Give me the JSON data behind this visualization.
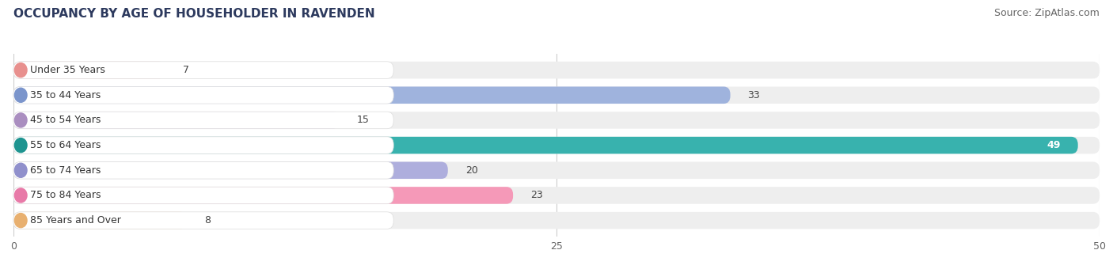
{
  "title": "OCCUPANCY BY AGE OF HOUSEHOLDER IN RAVENDEN",
  "source": "Source: ZipAtlas.com",
  "categories": [
    "Under 35 Years",
    "35 to 44 Years",
    "45 to 54 Years",
    "55 to 64 Years",
    "65 to 74 Years",
    "75 to 84 Years",
    "85 Years and Over"
  ],
  "values": [
    7,
    33,
    15,
    49,
    20,
    23,
    8
  ],
  "bar_colors": [
    "#f2aaaa",
    "#9fb3dd",
    "#c5a8d8",
    "#38b2ae",
    "#aeaedd",
    "#f599b8",
    "#f5c898"
  ],
  "dot_colors": [
    "#e8908e",
    "#7b95cc",
    "#aa8ec0",
    "#1e9490",
    "#9090cc",
    "#e87aa8",
    "#e8b070"
  ],
  "xlim": [
    0,
    50
  ],
  "xticks": [
    0,
    25,
    50
  ],
  "bg_color": "#ffffff",
  "bar_bg_color": "#eeeeee",
  "label_box_color": "#ffffff",
  "bar_height": 0.68,
  "title_fontsize": 11,
  "source_fontsize": 9,
  "label_fontsize": 9,
  "value_fontsize": 9
}
